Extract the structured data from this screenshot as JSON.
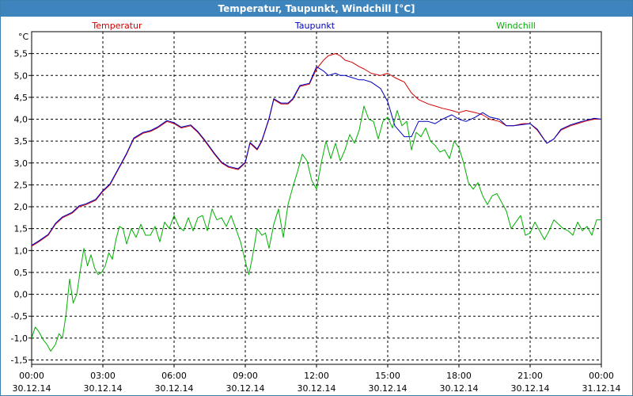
{
  "window": {
    "title": "Temperatur, Taupunkt, Windchill [°C]"
  },
  "colors": {
    "temperature": "#d00000",
    "dewpoint": "#0000c0",
    "windchill": "#00b000",
    "titlebar": "#3f85bd",
    "grid": "#000000"
  },
  "chart_data": {
    "type": "line",
    "title": "Temperatur, Taupunkt, Windchill [°C]",
    "ylabel": "°C",
    "xlabel": "",
    "ylim": [
      -1.6,
      6.0
    ],
    "y_ticks": [
      "5,5",
      "5,0",
      "4,5",
      "4,0",
      "3,5",
      "3,0",
      "2,5",
      "2,0",
      "1,5",
      "1,0",
      "0,5",
      "0,0",
      "-0,5",
      "-1,0",
      "-1,5"
    ],
    "y_tick_values": [
      5.5,
      5.0,
      4.5,
      4.0,
      3.5,
      3.0,
      2.5,
      2.0,
      1.5,
      1.0,
      0.5,
      0.0,
      -0.5,
      -1.0,
      -1.5
    ],
    "xlim": [
      0,
      24
    ],
    "x_ticks": [
      {
        "time": "00:00",
        "date": "30.12.14",
        "hour": 0
      },
      {
        "time": "03:00",
        "date": "30.12.14",
        "hour": 3
      },
      {
        "time": "06:00",
        "date": "30.12.14",
        "hour": 6
      },
      {
        "time": "09:00",
        "date": "30.12.14",
        "hour": 9
      },
      {
        "time": "12:00",
        "date": "30.12.14",
        "hour": 12
      },
      {
        "time": "15:00",
        "date": "30.12.14",
        "hour": 15
      },
      {
        "time": "18:00",
        "date": "30.12.14",
        "hour": 18
      },
      {
        "time": "21:00",
        "date": "30.12.14",
        "hour": 21
      },
      {
        "time": "00:00",
        "date": "31.12.14",
        "hour": 24
      }
    ],
    "grid": true,
    "legend_placement": "top",
    "series": [
      {
        "name": "Temperatur",
        "color": "#d00000",
        "x": [
          0,
          0.3,
          0.7,
          1.0,
          1.3,
          1.7,
          2.0,
          2.3,
          2.7,
          3.0,
          3.3,
          3.7,
          4.0,
          4.3,
          4.7,
          5.0,
          5.3,
          5.7,
          6.0,
          6.3,
          6.7,
          7.0,
          7.3,
          7.7,
          8.0,
          8.3,
          8.7,
          9.0,
          9.2,
          9.5,
          9.7,
          10.0,
          10.2,
          10.5,
          10.8,
          11.0,
          11.3,
          11.7,
          12.0,
          12.3,
          12.5,
          12.8,
          13.0,
          13.2,
          13.5,
          13.8,
          14.0,
          14.3,
          14.7,
          15.0,
          15.3,
          15.7,
          16.0,
          16.3,
          16.7,
          17.0,
          17.3,
          17.7,
          18.0,
          18.3,
          18.7,
          19.0,
          19.3,
          19.7,
          20.0,
          20.3,
          20.7,
          21.0,
          21.3,
          21.7,
          22.0,
          22.3,
          22.7,
          23.0,
          23.3,
          23.7,
          24.0
        ],
        "values": [
          1.1,
          1.2,
          1.35,
          1.6,
          1.75,
          1.85,
          2.0,
          2.05,
          2.15,
          2.35,
          2.5,
          2.9,
          3.2,
          3.55,
          3.68,
          3.72,
          3.8,
          3.95,
          3.9,
          3.8,
          3.85,
          3.7,
          3.5,
          3.2,
          3.0,
          2.9,
          2.85,
          3.0,
          3.45,
          3.3,
          3.5,
          4.0,
          4.45,
          4.35,
          4.35,
          4.45,
          4.75,
          4.8,
          5.15,
          5.35,
          5.45,
          5.5,
          5.45,
          5.35,
          5.3,
          5.2,
          5.15,
          5.05,
          5.0,
          5.05,
          4.95,
          4.85,
          4.6,
          4.45,
          4.35,
          4.3,
          4.25,
          4.2,
          4.15,
          4.2,
          4.15,
          4.1,
          4.0,
          3.95,
          3.85,
          3.85,
          3.9,
          3.9,
          3.75,
          3.45,
          3.55,
          3.75,
          3.85,
          3.9,
          3.95,
          4.0,
          4.0
        ]
      },
      {
        "name": "Taupunkt",
        "color": "#0000c0",
        "x": [
          0,
          0.3,
          0.7,
          1.0,
          1.3,
          1.7,
          2.0,
          2.3,
          2.7,
          3.0,
          3.3,
          3.7,
          4.0,
          4.3,
          4.7,
          5.0,
          5.3,
          5.7,
          6.0,
          6.3,
          6.7,
          7.0,
          7.3,
          7.7,
          8.0,
          8.3,
          8.7,
          9.0,
          9.2,
          9.5,
          9.7,
          10.0,
          10.2,
          10.5,
          10.8,
          11.0,
          11.3,
          11.7,
          12.0,
          12.3,
          12.5,
          12.8,
          13.0,
          13.2,
          13.5,
          13.8,
          14.0,
          14.3,
          14.7,
          15.0,
          15.3,
          15.7,
          16.0,
          16.3,
          16.7,
          17.0,
          17.3,
          17.7,
          18.0,
          18.3,
          18.7,
          19.0,
          19.3,
          19.7,
          20.0,
          20.3,
          20.7,
          21.0,
          21.3,
          21.7,
          22.0,
          22.3,
          22.7,
          23.0,
          23.3,
          23.7,
          24.0
        ],
        "values": [
          1.12,
          1.22,
          1.37,
          1.62,
          1.77,
          1.87,
          2.02,
          2.07,
          2.17,
          2.37,
          2.52,
          2.92,
          3.22,
          3.57,
          3.7,
          3.74,
          3.82,
          3.97,
          3.92,
          3.82,
          3.87,
          3.72,
          3.52,
          3.22,
          3.02,
          2.92,
          2.87,
          3.02,
          3.47,
          3.32,
          3.52,
          4.02,
          4.47,
          4.37,
          4.37,
          4.47,
          4.77,
          4.82,
          5.2,
          5.1,
          5.0,
          5.05,
          5.0,
          5.0,
          4.95,
          4.9,
          4.9,
          4.85,
          4.7,
          4.4,
          3.85,
          3.6,
          3.6,
          3.95,
          3.95,
          3.9,
          4.0,
          4.1,
          4.0,
          3.95,
          4.05,
          4.15,
          4.05,
          4.0,
          3.85,
          3.85,
          3.88,
          3.9,
          3.77,
          3.45,
          3.55,
          3.77,
          3.87,
          3.92,
          3.97,
          4.02,
          4.0
        ]
      },
      {
        "name": "Windchill",
        "color": "#00b000",
        "x": [
          0,
          0.15,
          0.3,
          0.5,
          0.65,
          0.8,
          1.0,
          1.15,
          1.3,
          1.45,
          1.6,
          1.75,
          1.9,
          2.05,
          2.2,
          2.35,
          2.5,
          2.65,
          2.8,
          2.95,
          3.1,
          3.25,
          3.4,
          3.55,
          3.7,
          3.85,
          4.0,
          4.2,
          4.4,
          4.6,
          4.8,
          5.0,
          5.2,
          5.4,
          5.6,
          5.8,
          6.0,
          6.2,
          6.4,
          6.6,
          6.8,
          7.0,
          7.2,
          7.4,
          7.6,
          7.8,
          8.0,
          8.2,
          8.4,
          8.6,
          8.8,
          9.0,
          9.15,
          9.3,
          9.5,
          9.7,
          9.85,
          10.0,
          10.2,
          10.4,
          10.6,
          10.8,
          11.0,
          11.2,
          11.4,
          11.6,
          11.8,
          12.0,
          12.2,
          12.4,
          12.6,
          12.8,
          13.0,
          13.2,
          13.4,
          13.6,
          13.8,
          14.0,
          14.2,
          14.4,
          14.6,
          14.8,
          15.0,
          15.2,
          15.4,
          15.6,
          15.8,
          16.0,
          16.2,
          16.4,
          16.6,
          16.8,
          17.0,
          17.2,
          17.4,
          17.6,
          17.8,
          18.0,
          18.2,
          18.4,
          18.6,
          18.8,
          19.0,
          19.2,
          19.4,
          19.6,
          19.8,
          20.0,
          20.2,
          20.4,
          20.6,
          20.8,
          21.0,
          21.2,
          21.4,
          21.6,
          21.8,
          22.0,
          22.2,
          22.4,
          22.6,
          22.8,
          23.0,
          23.2,
          23.4,
          23.6,
          23.8,
          24.0
        ],
        "values": [
          -1.0,
          -0.75,
          -0.85,
          -1.05,
          -1.15,
          -1.3,
          -1.15,
          -0.9,
          -1.0,
          -0.45,
          0.35,
          -0.2,
          0.0,
          0.55,
          1.05,
          0.65,
          0.9,
          0.6,
          0.45,
          0.5,
          0.65,
          0.95,
          0.8,
          1.25,
          1.55,
          1.5,
          1.15,
          1.5,
          1.3,
          1.6,
          1.35,
          1.35,
          1.55,
          1.2,
          1.65,
          1.5,
          1.8,
          1.55,
          1.45,
          1.75,
          1.45,
          1.75,
          1.8,
          1.45,
          1.95,
          1.7,
          1.75,
          1.55,
          1.8,
          1.5,
          1.2,
          0.75,
          0.45,
          0.85,
          1.5,
          1.35,
          1.4,
          1.05,
          1.6,
          1.95,
          1.3,
          2.05,
          2.45,
          2.8,
          3.2,
          3.05,
          2.6,
          2.4,
          3.0,
          3.5,
          3.1,
          3.45,
          3.05,
          3.3,
          3.65,
          3.45,
          3.75,
          4.3,
          4.0,
          3.95,
          3.55,
          3.95,
          4.05,
          3.8,
          4.2,
          3.85,
          3.95,
          3.3,
          3.7,
          3.6,
          3.8,
          3.5,
          3.4,
          3.25,
          3.3,
          3.1,
          3.5,
          3.35,
          3.0,
          2.55,
          2.4,
          2.55,
          2.25,
          2.05,
          2.25,
          2.3,
          2.1,
          1.9,
          1.5,
          1.65,
          1.8,
          1.35,
          1.4,
          1.65,
          1.45,
          1.25,
          1.45,
          1.7,
          1.6,
          1.5,
          1.45,
          1.35,
          1.65,
          1.45,
          1.55,
          1.35,
          1.7,
          1.7
        ]
      }
    ]
  }
}
